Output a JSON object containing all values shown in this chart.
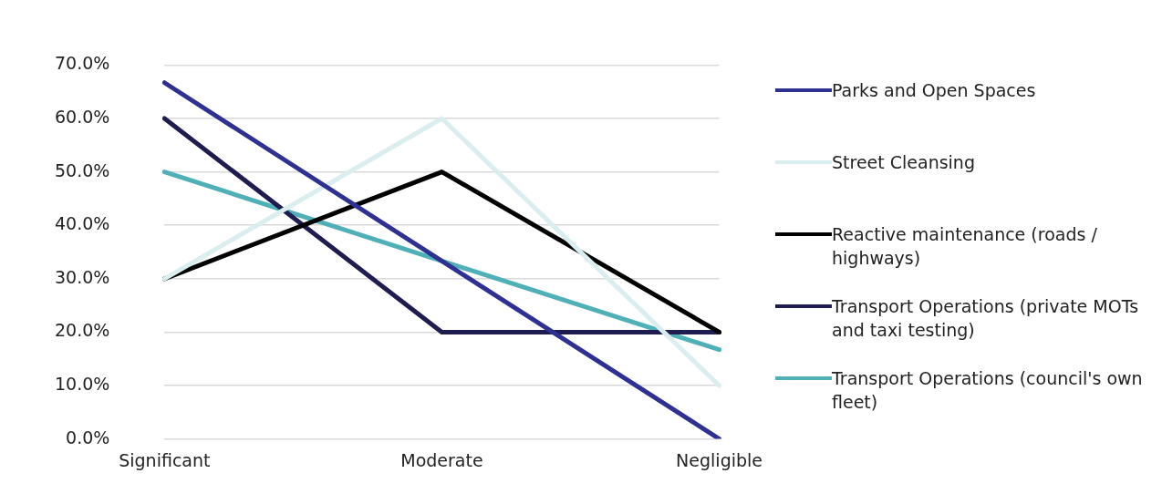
{
  "chart_data": {
    "type": "line",
    "categories": [
      "Significant",
      "Moderate",
      "Negligible"
    ],
    "series": [
      {
        "name": "Parks and Open Spaces",
        "color": "#2e3192",
        "values": [
          66.7,
          33.3,
          0
        ]
      },
      {
        "name": "Street Cleansing",
        "color": "#daedef",
        "values": [
          30,
          60,
          10
        ]
      },
      {
        "name": "Reactive maintenance (roads / highways)",
        "color": "#000000",
        "values": [
          30,
          50,
          20
        ]
      },
      {
        "name": "Transport Operations (private MOTs and taxi testing)",
        "color": "#1f1d4f",
        "values": [
          60,
          20,
          20
        ]
      },
      {
        "name": "Transport Operations (council's own fleet)",
        "color": "#4fb0b8",
        "values": [
          50,
          33.3,
          16.7
        ]
      }
    ],
    "ylim": [
      0,
      70
    ],
    "yticks": [
      {
        "value": 0,
        "label": "0.0%"
      },
      {
        "value": 10,
        "label": "10.0%"
      },
      {
        "value": 20,
        "label": "20.0%"
      },
      {
        "value": 30,
        "label": "30.0%"
      },
      {
        "value": 40,
        "label": "40.0%"
      },
      {
        "value": 50,
        "label": "50.0%"
      },
      {
        "value": 60,
        "label": "60.0%"
      },
      {
        "value": 70,
        "label": "70.0%"
      }
    ],
    "grid": "y",
    "legend": "right",
    "marker": "none",
    "line_style": "solid"
  }
}
